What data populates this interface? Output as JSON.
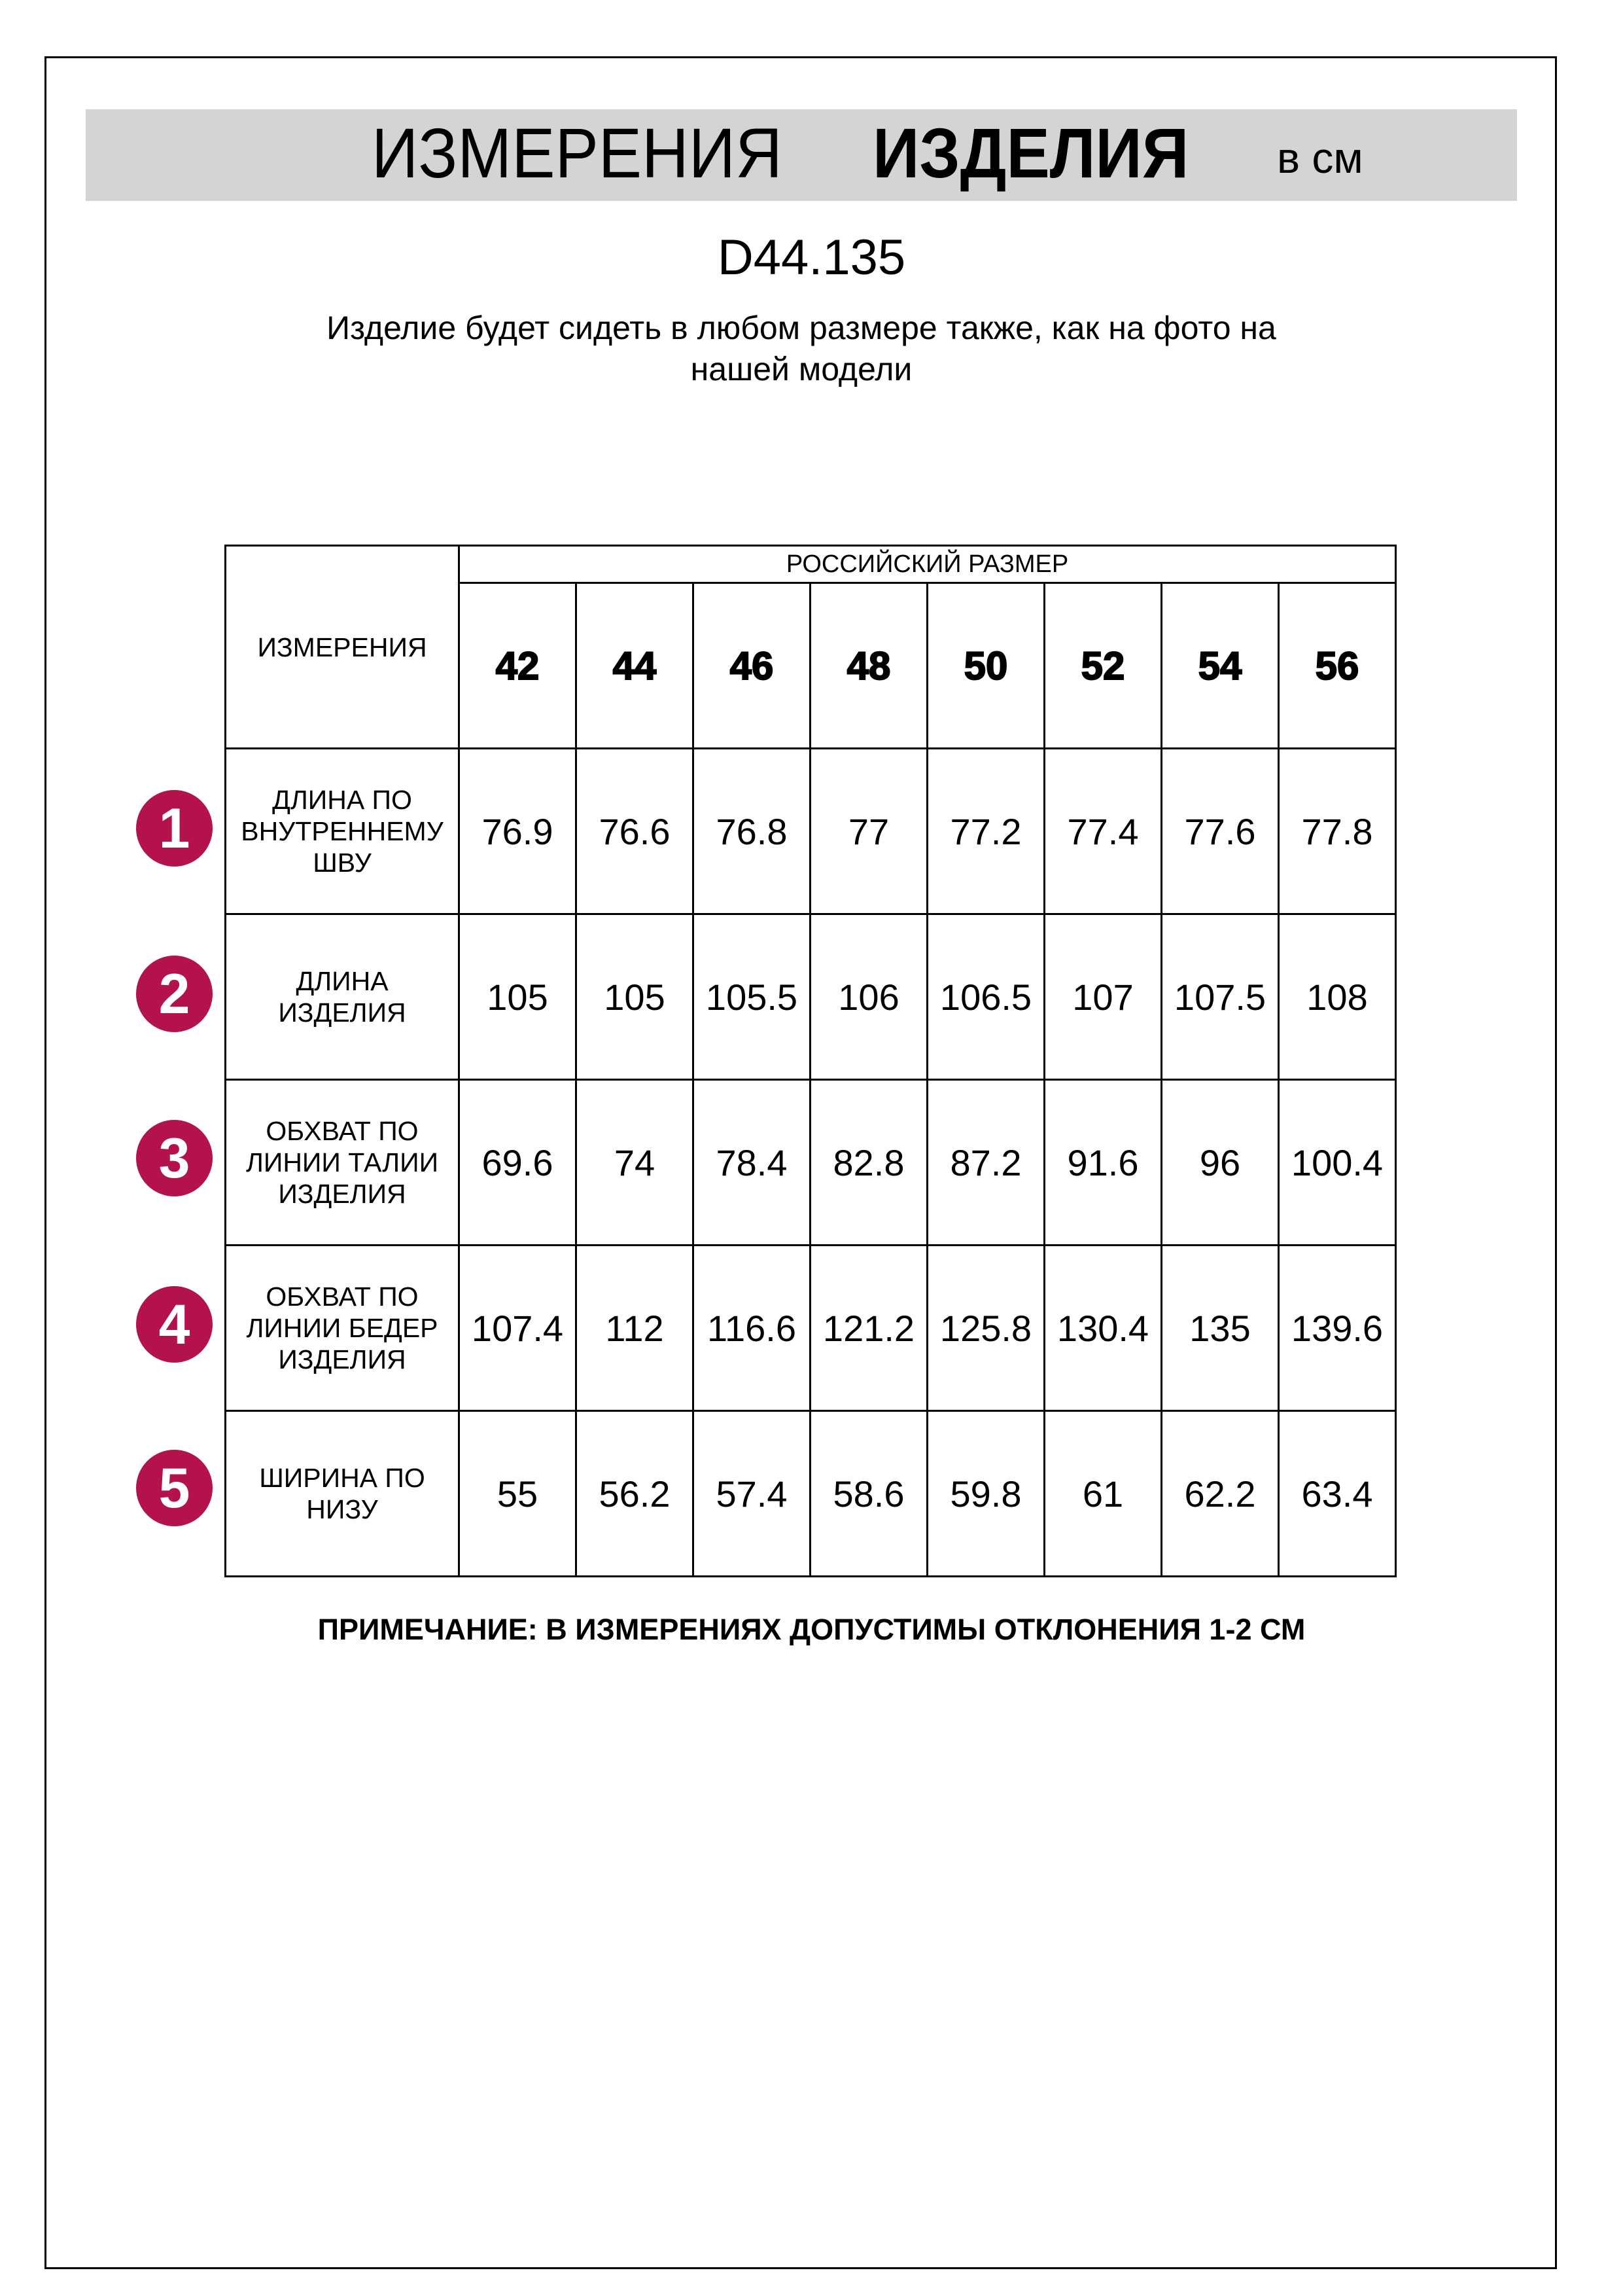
{
  "header": {
    "title_regular": "ИЗМЕРЕНИЯ",
    "title_bold": "ИЗДЕЛИЯ",
    "unit": "в см"
  },
  "product_code": "D44.135",
  "subtitle_line1": "Изделие будет сидеть в любом размере также, как на фото на",
  "subtitle_line2": "нашей модели",
  "table": {
    "corner_label": "ИЗМЕРЕНИЯ",
    "group_label": "РОССИЙСКИЙ РАЗМЕР",
    "sizes": [
      "42",
      "44",
      "46",
      "48",
      "50",
      "52",
      "54",
      "56"
    ],
    "rows": [
      {
        "num": "1",
        "label": [
          "ДЛИНА ПО",
          "ВНУТРЕННЕМУ",
          "ШВУ"
        ],
        "values": [
          "76.9",
          "76.6",
          "76.8",
          "77",
          "77.2",
          "77.4",
          "77.6",
          "77.8"
        ]
      },
      {
        "num": "2",
        "label": [
          "ДЛИНА",
          "ИЗДЕЛИЯ"
        ],
        "values": [
          "105",
          "105",
          "105.5",
          "106",
          "106.5",
          "107",
          "107.5",
          "108"
        ]
      },
      {
        "num": "3",
        "label": [
          "ОБХВАТ ПО",
          "ЛИНИИ ТАЛИИ",
          "ИЗДЕЛИЯ"
        ],
        "values": [
          "69.6",
          "74",
          "78.4",
          "82.8",
          "87.2",
          "91.6",
          "96",
          "100.4"
        ]
      },
      {
        "num": "4",
        "label": [
          "ОБХВАТ ПО",
          "ЛИНИИ БЕДЕР",
          "ИЗДЕЛИЯ"
        ],
        "values": [
          "107.4",
          "112",
          "116.6",
          "121.2",
          "125.8",
          "130.4",
          "135",
          "139.6"
        ]
      },
      {
        "num": "5",
        "label": [
          "ШИРИНА ПО",
          "НИЗУ"
        ],
        "values": [
          "55",
          "56.2",
          "57.4",
          "58.6",
          "59.8",
          "61",
          "62.2",
          "63.4"
        ]
      }
    ]
  },
  "note": "ПРИМЕЧАНИЕ: В ИЗМЕРЕНИЯХ ДОПУСТИМЫ ОТКЛОНЕНИЯ 1-2 СМ",
  "colors": {
    "badge": "#b3124c",
    "band": "#d4d4d4"
  }
}
